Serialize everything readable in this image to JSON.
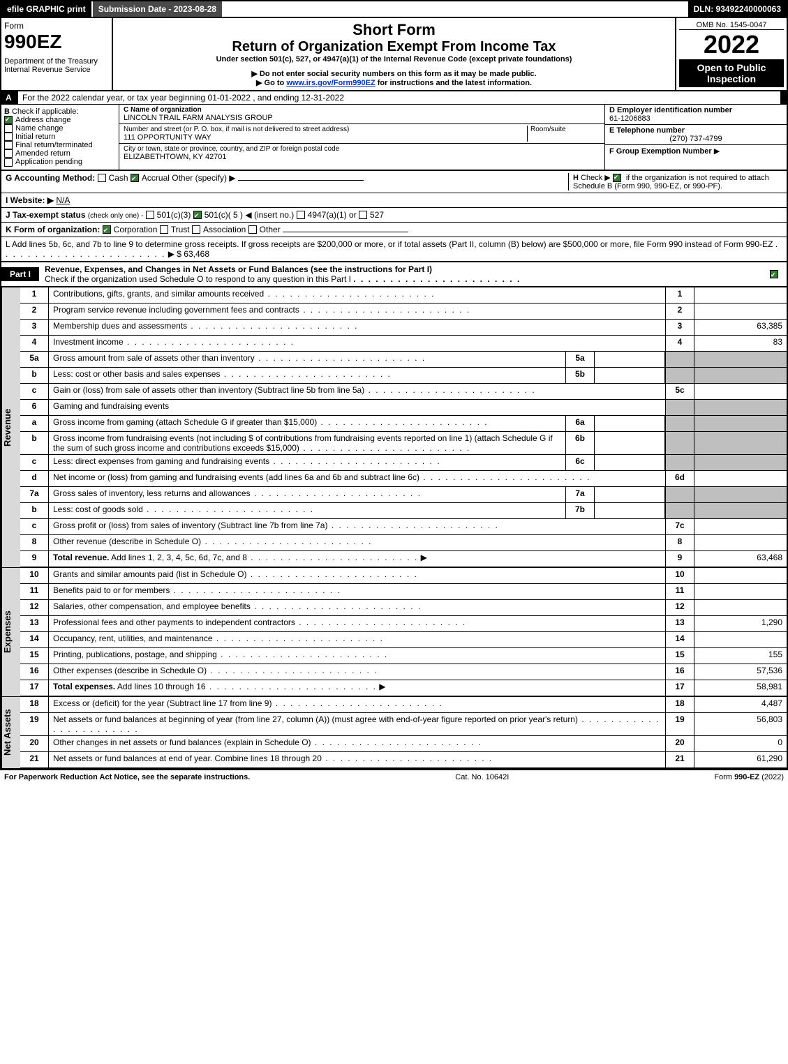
{
  "topbar": {
    "efile": "efile GRAPHIC print",
    "submission": "Submission Date - 2023-08-28",
    "dln": "DLN: 93492240000063"
  },
  "header": {
    "form_word": "Form",
    "form_num": "990EZ",
    "dept": "Department of the Treasury",
    "irs": "Internal Revenue Service",
    "short": "Short Form",
    "title": "Return of Organization Exempt From Income Tax",
    "under": "Under section 501(c), 527, or 4947(a)(1) of the Internal Revenue Code (except private foundations)",
    "ssn": "Do not enter social security numbers on this form as it may be made public.",
    "goto_pre": "Go to ",
    "goto_link": "www.irs.gov/Form990EZ",
    "goto_post": " for instructions and the latest information.",
    "omb": "OMB No. 1545-0047",
    "year": "2022",
    "open": "Open to Public Inspection"
  },
  "A": "For the 2022 calendar year, or tax year beginning 01-01-2022 , and ending 12-31-2022",
  "B": {
    "title": "Check if applicable:",
    "addr": "Address change",
    "name": "Name change",
    "init": "Initial return",
    "final": "Final return/terminated",
    "amend": "Amended return",
    "app": "Application pending"
  },
  "C": {
    "name_label": "C Name of organization",
    "name": "LINCOLN TRAIL FARM ANALYSIS GROUP",
    "street_label": "Number and street (or P. O. box, if mail is not delivered to street address)",
    "room_label": "Room/suite",
    "street": "111 OPPORTUNITY WAY",
    "city_label": "City or town, state or province, country, and ZIP or foreign postal code",
    "city": "ELIZABETHTOWN, KY  42701"
  },
  "D": {
    "label": "D Employer identification number",
    "val": "61-1206883"
  },
  "E": {
    "label": "E Telephone number",
    "val": "(270) 737-4799"
  },
  "F": {
    "label": "F Group Exemption Number",
    "arrow": "▶"
  },
  "G": {
    "label": "G Accounting Method:",
    "cash": "Cash",
    "accrual": "Accrual",
    "other": "Other (specify) ▶"
  },
  "H": {
    "label": "H",
    "text": "Check ▶",
    "cb": "if the organization is not required to attach Schedule B (Form 990, 990-EZ, or 990-PF)."
  },
  "I": {
    "label": "I Website: ▶",
    "val": "N/A"
  },
  "J": {
    "label": "J Tax-exempt status",
    "sub": "(check only one) -",
    "o1": "501(c)(3)",
    "o2": "501(c)( 5 ) ◀ (insert no.)",
    "o3": "4947(a)(1) or",
    "o4": "527"
  },
  "K": {
    "label": "K Form of organization:",
    "corp": "Corporation",
    "trust": "Trust",
    "assoc": "Association",
    "other": "Other"
  },
  "L": {
    "text": "L Add lines 5b, 6c, and 7b to line 9 to determine gross receipts. If gross receipts are $200,000 or more, or if total assets (Part II, column (B) below) are $500,000 or more, file Form 990 instead of Form 990-EZ",
    "val": "$ 63,468"
  },
  "part1": {
    "tab": "Part I",
    "title": "Revenue, Expenses, and Changes in Net Assets or Fund Balances (see the instructions for Part I)",
    "check": "Check if the organization used Schedule O to respond to any question in this Part I"
  },
  "sidebar": {
    "rev": "Revenue",
    "exp": "Expenses",
    "na": "Net Assets"
  },
  "lines": {
    "l1": {
      "n": "1",
      "d": "Contributions, gifts, grants, and similar amounts received",
      "rn": "1",
      "rv": ""
    },
    "l2": {
      "n": "2",
      "d": "Program service revenue including government fees and contracts",
      "rn": "2",
      "rv": ""
    },
    "l3": {
      "n": "3",
      "d": "Membership dues and assessments",
      "rn": "3",
      "rv": "63,385"
    },
    "l4": {
      "n": "4",
      "d": "Investment income",
      "rn": "4",
      "rv": "83"
    },
    "l5a": {
      "n": "5a",
      "d": "Gross amount from sale of assets other than inventory",
      "in": "5a"
    },
    "l5b": {
      "n": "b",
      "d": "Less: cost or other basis and sales expenses",
      "in": "5b"
    },
    "l5c": {
      "n": "c",
      "d": "Gain or (loss) from sale of assets other than inventory (Subtract line 5b from line 5a)",
      "rn": "5c",
      "rv": ""
    },
    "l6": {
      "n": "6",
      "d": "Gaming and fundraising events"
    },
    "l6a": {
      "n": "a",
      "d": "Gross income from gaming (attach Schedule G if greater than $15,000)",
      "in": "6a"
    },
    "l6b": {
      "n": "b",
      "d": "Gross income from fundraising events (not including $                  of contributions from fundraising events reported on line 1) (attach Schedule G if the sum of such gross income and contributions exceeds $15,000)",
      "in": "6b"
    },
    "l6c": {
      "n": "c",
      "d": "Less: direct expenses from gaming and fundraising events",
      "in": "6c"
    },
    "l6d": {
      "n": "d",
      "d": "Net income or (loss) from gaming and fundraising events (add lines 6a and 6b and subtract line 6c)",
      "rn": "6d",
      "rv": ""
    },
    "l7a": {
      "n": "7a",
      "d": "Gross sales of inventory, less returns and allowances",
      "in": "7a"
    },
    "l7b": {
      "n": "b",
      "d": "Less: cost of goods sold",
      "in": "7b"
    },
    "l7c": {
      "n": "c",
      "d": "Gross profit or (loss) from sales of inventory (Subtract line 7b from line 7a)",
      "rn": "7c",
      "rv": ""
    },
    "l8": {
      "n": "8",
      "d": "Other revenue (describe in Schedule O)",
      "rn": "8",
      "rv": ""
    },
    "l9": {
      "n": "9",
      "d": "Total revenue. Add lines 1, 2, 3, 4, 5c, 6d, 7c, and 8",
      "rn": "9",
      "rv": "63,468"
    },
    "l10": {
      "n": "10",
      "d": "Grants and similar amounts paid (list in Schedule O)",
      "rn": "10",
      "rv": ""
    },
    "l11": {
      "n": "11",
      "d": "Benefits paid to or for members",
      "rn": "11",
      "rv": ""
    },
    "l12": {
      "n": "12",
      "d": "Salaries, other compensation, and employee benefits",
      "rn": "12",
      "rv": ""
    },
    "l13": {
      "n": "13",
      "d": "Professional fees and other payments to independent contractors",
      "rn": "13",
      "rv": "1,290"
    },
    "l14": {
      "n": "14",
      "d": "Occupancy, rent, utilities, and maintenance",
      "rn": "14",
      "rv": ""
    },
    "l15": {
      "n": "15",
      "d": "Printing, publications, postage, and shipping",
      "rn": "15",
      "rv": "155"
    },
    "l16": {
      "n": "16",
      "d": "Other expenses (describe in Schedule O)",
      "rn": "16",
      "rv": "57,536"
    },
    "l17": {
      "n": "17",
      "d": "Total expenses. Add lines 10 through 16",
      "rn": "17",
      "rv": "58,981"
    },
    "l18": {
      "n": "18",
      "d": "Excess or (deficit) for the year (Subtract line 17 from line 9)",
      "rn": "18",
      "rv": "4,487"
    },
    "l19": {
      "n": "19",
      "d": "Net assets or fund balances at beginning of year (from line 27, column (A)) (must agree with end-of-year figure reported on prior year's return)",
      "rn": "19",
      "rv": "56,803"
    },
    "l20": {
      "n": "20",
      "d": "Other changes in net assets or fund balances (explain in Schedule O)",
      "rn": "20",
      "rv": "0"
    },
    "l21": {
      "n": "21",
      "d": "Net assets or fund balances at end of year. Combine lines 18 through 20",
      "rn": "21",
      "rv": "61,290"
    }
  },
  "footer": {
    "left": "For Paperwork Reduction Act Notice, see the separate instructions.",
    "mid": "Cat. No. 10642I",
    "right": "Form 990-EZ (2022)"
  }
}
